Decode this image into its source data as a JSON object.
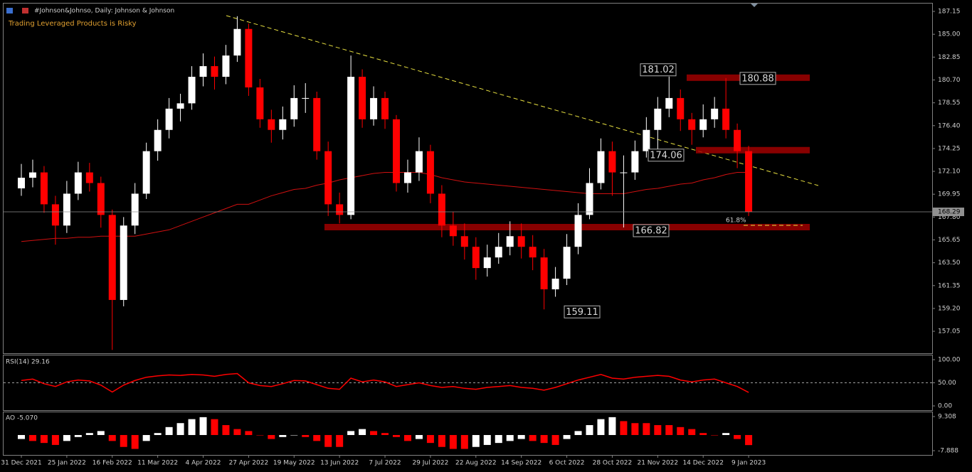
{
  "header": {
    "symbol": "#Johnson&Johnso, Daily:  Johnson & Johnson",
    "warning": "Trading Leveraged Products is Risky"
  },
  "chart_data": {
    "type": "candlestick",
    "up_color": "#ffffff",
    "down_color": "#ff0000",
    "last_price": 168.29,
    "categories": [
      "31 Dec 2021",
      null,
      null,
      null,
      "25 Jan 2022",
      null,
      null,
      null,
      "16 Feb 2022",
      null,
      null,
      null,
      "11 Mar 2022",
      null,
      null,
      null,
      "4 Apr 2022",
      null,
      null,
      null,
      "27 Apr 2022",
      null,
      null,
      null,
      "19 May 2022",
      null,
      null,
      null,
      "13 Jun 2022",
      null,
      null,
      null,
      "7 Jul 2022",
      null,
      null,
      null,
      "29 Jul 2022",
      null,
      null,
      null,
      "22 Aug 2022",
      null,
      null,
      null,
      "14 Sep 2022",
      null,
      null,
      null,
      "6 Oct 2022",
      null,
      null,
      null,
      "28 Oct 2022",
      null,
      null,
      null,
      "21 Nov 2022",
      null,
      null,
      null,
      "14 Dec 2022",
      null,
      null,
      null,
      "9 Jan 2023"
    ],
    "open": [
      170.5,
      171.5,
      172,
      169,
      167,
      170,
      172,
      171,
      168,
      160,
      167,
      170,
      174,
      176,
      178,
      178.5,
      181,
      182,
      181,
      183,
      185.5,
      180,
      177,
      176,
      177,
      179,
      179,
      174,
      169,
      168,
      181,
      177,
      179,
      177,
      171,
      172,
      174,
      170,
      167,
      166,
      165,
      163,
      164,
      165,
      166,
      165,
      164,
      161,
      162,
      165,
      168,
      171,
      174,
      172,
      172,
      174,
      176,
      178,
      179,
      177,
      176,
      177,
      178,
      176,
      174
    ],
    "high": [
      172.8,
      173.2,
      172.6,
      169.8,
      171.2,
      173,
      172.9,
      171.6,
      168.5,
      167.8,
      171,
      174.8,
      177,
      179,
      179.4,
      182,
      183.2,
      182.9,
      184,
      186.7,
      186,
      180.8,
      177.9,
      178.2,
      180.2,
      180.4,
      179.6,
      174.9,
      170.1,
      183,
      181.7,
      180.1,
      179.6,
      177.4,
      173.2,
      175.3,
      174.6,
      170.8,
      168.3,
      167.2,
      165.9,
      165.2,
      166.3,
      167.4,
      167.2,
      166.1,
      164.8,
      163.1,
      166.2,
      169.1,
      172.4,
      175.2,
      174.9,
      173.6,
      175,
      177.2,
      179.1,
      181.02,
      179.8,
      177.6,
      178.4,
      179.1,
      180.88,
      176.6,
      174.5
    ],
    "low": [
      169.8,
      170.6,
      168.2,
      165.2,
      166.3,
      169.4,
      170.2,
      166.8,
      155.3,
      159.4,
      166.2,
      169.5,
      173.1,
      175.2,
      176.8,
      177.9,
      180.1,
      179.8,
      180.3,
      182.4,
      179.2,
      176.2,
      174.8,
      175.1,
      176.3,
      177.6,
      173.2,
      167.9,
      167.2,
      167.6,
      176.2,
      176.4,
      176.1,
      170.2,
      170.1,
      171.2,
      169.1,
      165.9,
      165.1,
      163.8,
      161.9,
      162.2,
      163.4,
      164.2,
      163.9,
      162.8,
      159.11,
      160.3,
      161.4,
      164.3,
      167.6,
      170.4,
      169.8,
      166.82,
      171.3,
      173.4,
      174.06,
      177.2,
      175.9,
      174.6,
      175.3,
      176.2,
      175.2,
      172.4,
      167.9
    ],
    "close": [
      171.5,
      172,
      169,
      167,
      170,
      172,
      171,
      168,
      160,
      167,
      170,
      174,
      176,
      178,
      178.5,
      181,
      182,
      181,
      183,
      185.5,
      180,
      177,
      176,
      177,
      179,
      179,
      174,
      169,
      168,
      181,
      177,
      179,
      177,
      171,
      172,
      174,
      170,
      167,
      166,
      165,
      163,
      164,
      165,
      166,
      165,
      164,
      161,
      162,
      165,
      168,
      171,
      174,
      172,
      172,
      174,
      176,
      178,
      179,
      177,
      176,
      177,
      178,
      176,
      174,
      168.29
    ],
    "ma": {
      "color": "#d01010",
      "values": [
        165.5,
        165.6,
        165.7,
        165.8,
        165.8,
        165.9,
        165.9,
        166,
        166,
        166,
        166,
        166.2,
        166.4,
        166.6,
        167,
        167.4,
        167.8,
        168.2,
        168.6,
        169,
        169,
        169.4,
        169.8,
        170.1,
        170.4,
        170.5,
        170.8,
        171,
        171.3,
        171.5,
        171.7,
        171.9,
        172,
        172,
        172,
        172,
        171.8,
        171.5,
        171.3,
        171.1,
        171,
        170.9,
        170.8,
        170.7,
        170.6,
        170.5,
        170.4,
        170.3,
        170.2,
        170.1,
        170,
        170,
        170,
        170,
        170.2,
        170.4,
        170.5,
        170.7,
        170.9,
        171,
        171.3,
        171.5,
        171.8,
        172,
        172
      ]
    },
    "ylim": [
      154.98,
      187.89
    ],
    "yticks": [
      187.15,
      {
        "value": 185,
        "label": "185.00"
      },
      182.85,
      {
        "value": 180.7,
        "label": "180.70"
      },
      178.55,
      {
        "value": 176.4,
        "label": "176.40"
      },
      174.25,
      {
        "value": 172.1,
        "label": "172.10"
      },
      169.95,
      {
        "value": 167.8,
        "label": "167.80"
      },
      165.65,
      {
        "value": 163.5,
        "label": "163.50"
      },
      161.35,
      {
        "value": 159.2,
        "label": "159.20"
      },
      157.05
    ],
    "price_labels": [
      181.02,
      180.88,
      174.06,
      166.82,
      159.11
    ],
    "fib_label": "61.8%",
    "rsi": {
      "title": "RSI(14) 29.16",
      "color": "#ff0000",
      "ylim": [
        -9.2,
        109.2
      ],
      "level": 50,
      "yticks": [
        {
          "value": 100,
          "label": "100.00"
        },
        {
          "value": 50,
          "label": "50.00"
        },
        {
          "value": 0,
          "label": "0.00"
        }
      ],
      "values": [
        55,
        58,
        48,
        42,
        52,
        56,
        54,
        45,
        30,
        45,
        55,
        62,
        65,
        67,
        66,
        68,
        67,
        64,
        68,
        70,
        50,
        44,
        42,
        48,
        55,
        54,
        46,
        38,
        36,
        60,
        52,
        56,
        52,
        42,
        46,
        50,
        44,
        40,
        42,
        38,
        36,
        40,
        42,
        44,
        40,
        38,
        34,
        40,
        48,
        56,
        62,
        68,
        60,
        58,
        62,
        64,
        66,
        64,
        56,
        52,
        56,
        58,
        50,
        42,
        29.16
      ]
    },
    "ao": {
      "title": "AO -5.070",
      "ylim": [
        -10.04,
        11.46
      ],
      "yticks": [
        9.308,
        -7.888
      ],
      "values": [
        -2,
        -3,
        -4,
        -5,
        -3,
        -1,
        1,
        2,
        -3,
        -6,
        -7,
        -3,
        1,
        4,
        6,
        8,
        9,
        8,
        5,
        3,
        2,
        0,
        -2,
        -1,
        0,
        -1,
        -3,
        -6,
        -6,
        2,
        3,
        2,
        1,
        -1,
        -3,
        -2,
        -4,
        -6,
        -7,
        -7,
        -6,
        -5,
        -4,
        -3,
        -2,
        -3,
        -4,
        -5,
        -2,
        2,
        5,
        8,
        9,
        7,
        6,
        6,
        5,
        5,
        4,
        3,
        1,
        0,
        1,
        -2,
        -5.07
      ]
    }
  }
}
